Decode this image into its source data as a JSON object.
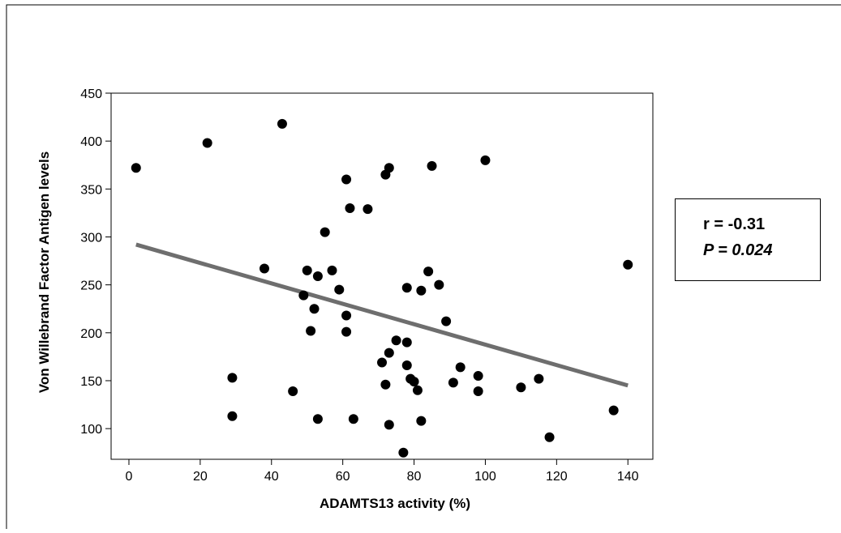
{
  "chart_data": {
    "type": "scatter",
    "xlabel": "ADAMTS13 activity (%)",
    "ylabel": "Von Willebrand Factor Antigen levels",
    "xlim": [
      -5,
      147
    ],
    "ylim": [
      68,
      450
    ],
    "xticks": [
      0,
      20,
      40,
      60,
      80,
      100,
      120,
      140
    ],
    "yticks": [
      100,
      150,
      200,
      250,
      300,
      350,
      400,
      450
    ],
    "grid": false,
    "points": [
      {
        "x": 2,
        "y": 372
      },
      {
        "x": 22,
        "y": 398
      },
      {
        "x": 43,
        "y": 418
      },
      {
        "x": 29,
        "y": 153
      },
      {
        "x": 29,
        "y": 113
      },
      {
        "x": 38,
        "y": 267
      },
      {
        "x": 46,
        "y": 139
      },
      {
        "x": 49,
        "y": 239
      },
      {
        "x": 50,
        "y": 265
      },
      {
        "x": 51,
        "y": 202
      },
      {
        "x": 52,
        "y": 225
      },
      {
        "x": 53,
        "y": 110
      },
      {
        "x": 53,
        "y": 259
      },
      {
        "x": 55,
        "y": 305
      },
      {
        "x": 57,
        "y": 265
      },
      {
        "x": 59,
        "y": 245
      },
      {
        "x": 61,
        "y": 360
      },
      {
        "x": 61,
        "y": 218
      },
      {
        "x": 61,
        "y": 201
      },
      {
        "x": 62,
        "y": 330
      },
      {
        "x": 63,
        "y": 110
      },
      {
        "x": 67,
        "y": 329
      },
      {
        "x": 71,
        "y": 169
      },
      {
        "x": 72,
        "y": 365
      },
      {
        "x": 72,
        "y": 146
      },
      {
        "x": 73,
        "y": 104
      },
      {
        "x": 73,
        "y": 179
      },
      {
        "x": 73,
        "y": 372
      },
      {
        "x": 75,
        "y": 192
      },
      {
        "x": 77,
        "y": 75
      },
      {
        "x": 78,
        "y": 247
      },
      {
        "x": 78,
        "y": 166
      },
      {
        "x": 78,
        "y": 190
      },
      {
        "x": 79,
        "y": 152
      },
      {
        "x": 80,
        "y": 149
      },
      {
        "x": 81,
        "y": 140
      },
      {
        "x": 82,
        "y": 108
      },
      {
        "x": 82,
        "y": 244
      },
      {
        "x": 84,
        "y": 264
      },
      {
        "x": 85,
        "y": 374
      },
      {
        "x": 87,
        "y": 250
      },
      {
        "x": 89,
        "y": 212
      },
      {
        "x": 91,
        "y": 148
      },
      {
        "x": 93,
        "y": 164
      },
      {
        "x": 98,
        "y": 155
      },
      {
        "x": 98,
        "y": 139
      },
      {
        "x": 100,
        "y": 380
      },
      {
        "x": 110,
        "y": 143
      },
      {
        "x": 115,
        "y": 152
      },
      {
        "x": 118,
        "y": 91
      },
      {
        "x": 136,
        "y": 119
      },
      {
        "x": 140,
        "y": 271
      }
    ],
    "trendline": {
      "x": [
        2,
        140
      ],
      "y": [
        292,
        145
      ]
    },
    "annotation": {
      "r_text": "r = -0.31",
      "p_text": "P = 0.024"
    },
    "colors": {
      "points": "#000000",
      "trendline": "#6e6e6e",
      "frame": "#000000"
    }
  }
}
